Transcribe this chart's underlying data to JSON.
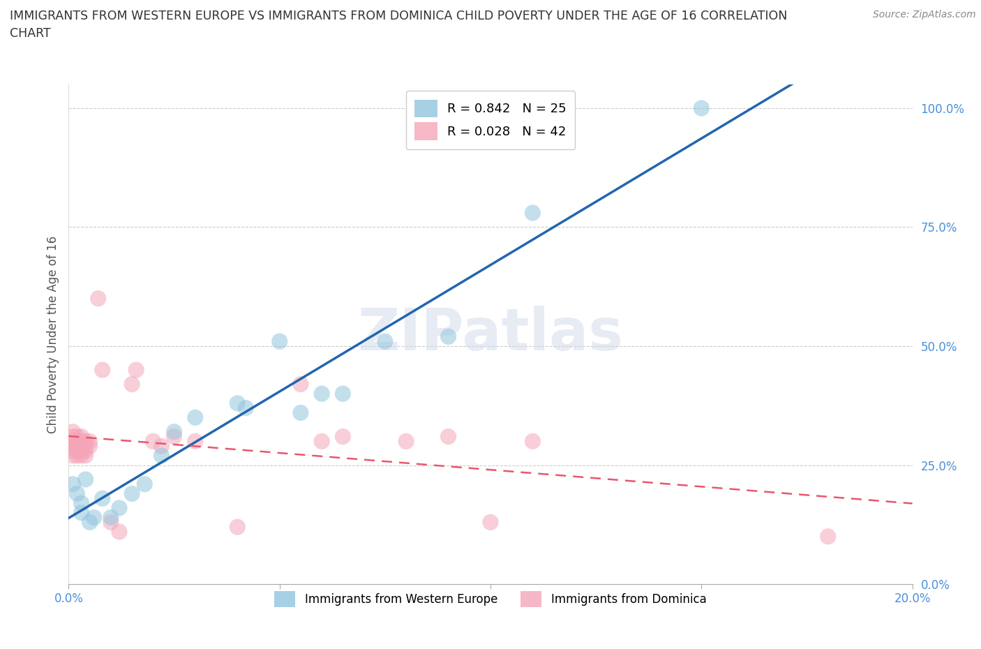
{
  "title": "IMMIGRANTS FROM WESTERN EUROPE VS IMMIGRANTS FROM DOMINICA CHILD POVERTY UNDER THE AGE OF 16 CORRELATION\nCHART",
  "source": "Source: ZipAtlas.com",
  "ylabel": "Child Poverty Under the Age of 16",
  "xlim": [
    0.0,
    0.2
  ],
  "ylim": [
    0.0,
    1.05
  ],
  "yticks": [
    0.0,
    0.25,
    0.5,
    0.75,
    1.0
  ],
  "ytick_labels": [
    "0.0%",
    "25.0%",
    "50.0%",
    "75.0%",
    "100.0%"
  ],
  "xticks": [
    0.0,
    0.05,
    0.1,
    0.15,
    0.2
  ],
  "xtick_labels": [
    "0.0%",
    "",
    "",
    "",
    "20.0%"
  ],
  "blue_R": 0.842,
  "blue_N": 25,
  "pink_R": 0.028,
  "pink_N": 42,
  "blue_color": "#92c5de",
  "pink_color": "#f4a6b8",
  "blue_line_color": "#2166ac",
  "pink_line_color": "#e8566e",
  "watermark": "ZIPatlas",
  "background_color": "#ffffff",
  "grid_color": "#cccccc",
  "blue_scatter": [
    [
      0.001,
      0.21
    ],
    [
      0.002,
      0.19
    ],
    [
      0.003,
      0.17
    ],
    [
      0.003,
      0.15
    ],
    [
      0.004,
      0.22
    ],
    [
      0.005,
      0.13
    ],
    [
      0.006,
      0.14
    ],
    [
      0.008,
      0.18
    ],
    [
      0.01,
      0.14
    ],
    [
      0.012,
      0.16
    ],
    [
      0.015,
      0.19
    ],
    [
      0.018,
      0.21
    ],
    [
      0.022,
      0.27
    ],
    [
      0.025,
      0.32
    ],
    [
      0.03,
      0.35
    ],
    [
      0.04,
      0.38
    ],
    [
      0.042,
      0.37
    ],
    [
      0.05,
      0.51
    ],
    [
      0.055,
      0.36
    ],
    [
      0.06,
      0.4
    ],
    [
      0.065,
      0.4
    ],
    [
      0.075,
      0.51
    ],
    [
      0.09,
      0.52
    ],
    [
      0.11,
      0.78
    ],
    [
      0.15,
      1.0
    ]
  ],
  "pink_scatter": [
    [
      0.001,
      0.3
    ],
    [
      0.001,
      0.31
    ],
    [
      0.001,
      0.28
    ],
    [
      0.001,
      0.29
    ],
    [
      0.001,
      0.27
    ],
    [
      0.001,
      0.32
    ],
    [
      0.002,
      0.3
    ],
    [
      0.002,
      0.29
    ],
    [
      0.002,
      0.31
    ],
    [
      0.002,
      0.28
    ],
    [
      0.002,
      0.27
    ],
    [
      0.002,
      0.3
    ],
    [
      0.003,
      0.29
    ],
    [
      0.003,
      0.3
    ],
    [
      0.003,
      0.28
    ],
    [
      0.003,
      0.31
    ],
    [
      0.003,
      0.27
    ],
    [
      0.004,
      0.29
    ],
    [
      0.004,
      0.3
    ],
    [
      0.004,
      0.28
    ],
    [
      0.004,
      0.27
    ],
    [
      0.005,
      0.3
    ],
    [
      0.005,
      0.29
    ],
    [
      0.007,
      0.6
    ],
    [
      0.008,
      0.45
    ],
    [
      0.01,
      0.13
    ],
    [
      0.012,
      0.11
    ],
    [
      0.015,
      0.42
    ],
    [
      0.016,
      0.45
    ],
    [
      0.02,
      0.3
    ],
    [
      0.022,
      0.29
    ],
    [
      0.025,
      0.31
    ],
    [
      0.03,
      0.3
    ],
    [
      0.04,
      0.12
    ],
    [
      0.055,
      0.42
    ],
    [
      0.06,
      0.3
    ],
    [
      0.065,
      0.31
    ],
    [
      0.08,
      0.3
    ],
    [
      0.09,
      0.31
    ],
    [
      0.1,
      0.13
    ],
    [
      0.11,
      0.3
    ],
    [
      0.18,
      0.1
    ]
  ]
}
